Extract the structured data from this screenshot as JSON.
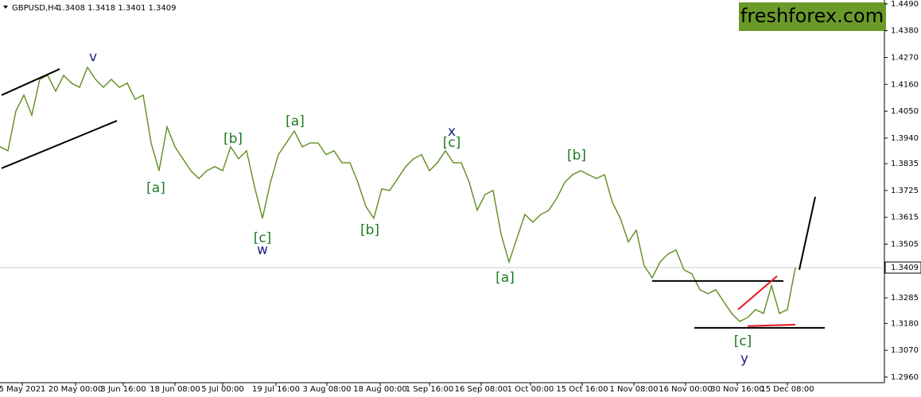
{
  "chart_data": {
    "type": "line",
    "symbol": "GBPUSD,H4",
    "ohlc": "1.3408 1.3418 1.3401 1.3409",
    "logo": "freshforex.com",
    "xlim": [
      0,
      111
    ],
    "ylim": [
      1.2937,
      1.4506
    ],
    "xticks": [
      {
        "value": 2.8,
        "label": "5 May 2021"
      },
      {
        "value": 9.5,
        "label": "20 May 00:00"
      },
      {
        "value": 15.5,
        "label": "3 Jun 16:00"
      },
      {
        "value": 22,
        "label": "18 Jun 08:00"
      },
      {
        "value": 28,
        "label": "5 Jul 00:00"
      },
      {
        "value": 34.7,
        "label": "19 Jul 16:00"
      },
      {
        "value": 41.1,
        "label": "3 Aug 08:00"
      },
      {
        "value": 47.8,
        "label": "18 Aug 00:00"
      },
      {
        "value": 54,
        "label": "1 Sep 16:00"
      },
      {
        "value": 60.5,
        "label": "16 Sep 08:00"
      },
      {
        "value": 66.7,
        "label": "1 Oct 00:00"
      },
      {
        "value": 73.2,
        "label": "15 Oct 16:00"
      },
      {
        "value": 79.7,
        "label": "1 Nov 08:00"
      },
      {
        "value": 86.2,
        "label": "16 Nov 00:00"
      },
      {
        "value": 92.7,
        "label": "30 Nov 16:00"
      },
      {
        "value": 99,
        "label": "15 Dec 08:00"
      }
    ],
    "yticks": [
      {
        "value": 1.449,
        "label": "1.4490"
      },
      {
        "value": 1.438,
        "label": "1.4380"
      },
      {
        "value": 1.427,
        "label": "1.4270"
      },
      {
        "value": 1.416,
        "label": "1.4160"
      },
      {
        "value": 1.405,
        "label": "1.4050"
      },
      {
        "value": 1.394,
        "label": "1.3940"
      },
      {
        "value": 1.3835,
        "label": "1.3835"
      },
      {
        "value": 1.3725,
        "label": "1.3725"
      },
      {
        "value": 1.3615,
        "label": "1.3615"
      },
      {
        "value": 1.3505,
        "label": "1.3505"
      },
      {
        "value": 1.3285,
        "label": "1.3285"
      },
      {
        "value": 1.318,
        "label": "1.3180"
      },
      {
        "value": 1.307,
        "label": "1.3070"
      },
      {
        "value": 1.296,
        "label": "1.2960"
      }
    ],
    "current_price": {
      "value": 1.3409,
      "label": "1.3409"
    },
    "series": [
      {
        "name": "GBPUSD",
        "color": "#5e8c1e",
        "x": [
          0,
          1,
          2,
          3,
          4,
          5,
          6,
          7,
          8,
          9,
          10,
          11,
          12,
          13,
          14,
          15,
          16,
          17,
          18,
          19,
          20,
          21,
          22,
          23,
          24,
          25,
          26,
          27,
          28,
          29,
          30,
          31,
          32,
          33,
          34,
          35,
          36,
          37,
          38,
          39,
          40,
          41,
          42,
          43,
          44,
          45,
          46,
          47,
          48,
          49,
          50,
          51,
          52,
          53,
          54,
          55,
          56,
          57,
          58,
          59,
          60,
          61,
          62,
          63,
          64,
          65,
          66,
          67,
          68,
          69,
          70,
          71,
          72,
          73,
          74,
          75,
          76,
          77,
          78,
          79,
          80,
          81,
          82,
          83,
          84,
          85,
          86,
          87,
          88,
          89,
          90,
          91,
          92,
          93,
          94,
          95,
          96,
          97,
          98,
          99,
          100
        ],
        "values": [
          1.3904,
          1.3888,
          1.4051,
          1.4116,
          1.4034,
          1.4181,
          1.4197,
          1.4132,
          1.4197,
          1.4165,
          1.4148,
          1.423,
          1.4181,
          1.4148,
          1.4181,
          1.4148,
          1.4165,
          1.4099,
          1.4116,
          1.392,
          1.3806,
          1.3986,
          1.3904,
          1.3855,
          1.3806,
          1.3774,
          1.3806,
          1.3823,
          1.3806,
          1.3904,
          1.3855,
          1.3888,
          1.3741,
          1.3611,
          1.3758,
          1.3872,
          1.392,
          1.3969,
          1.3904,
          1.392,
          1.392,
          1.3872,
          1.3888,
          1.3839,
          1.3839,
          1.3758,
          1.366,
          1.3611,
          1.3732,
          1.3725,
          1.3774,
          1.3823,
          1.3855,
          1.3872,
          1.3806,
          1.3839,
          1.3888,
          1.3839,
          1.3839,
          1.3758,
          1.3644,
          1.3709,
          1.3725,
          1.3546,
          1.3432,
          1.353,
          1.3627,
          1.3595,
          1.3627,
          1.3644,
          1.3693,
          1.3758,
          1.379,
          1.3806,
          1.379,
          1.3774,
          1.379,
          1.3676,
          1.3611,
          1.3514,
          1.3562,
          1.3416,
          1.3367,
          1.3432,
          1.3465,
          1.3481,
          1.34,
          1.3383,
          1.3318,
          1.3302,
          1.3318,
          1.3269,
          1.3221,
          1.3188,
          1.3204,
          1.3237,
          1.3221,
          1.3335,
          1.3221,
          1.3237,
          1.3409
        ]
      }
    ],
    "annotations": [
      {
        "text": "v",
        "x": 11.7,
        "y": 1.4272,
        "color": "#1a237e"
      },
      {
        "text": "[a]",
        "x": 19.6,
        "y": 1.3735,
        "color": "#1e7a1e"
      },
      {
        "text": "[b]",
        "x": 29.3,
        "y": 1.3937,
        "color": "#1e7a1e"
      },
      {
        "text": "[c]",
        "x": 33,
        "y": 1.353,
        "color": "#1e7a1e"
      },
      {
        "text": "w",
        "x": 33,
        "y": 1.3481,
        "color": "#1a237e"
      },
      {
        "text": "[a]",
        "x": 37.1,
        "y": 1.4008,
        "color": "#1e7a1e"
      },
      {
        "text": "[b]",
        "x": 46.5,
        "y": 1.3562,
        "color": "#1e7a1e"
      },
      {
        "text": "x",
        "x": 56.8,
        "y": 1.3966,
        "color": "#1a237e"
      },
      {
        "text": "[c]",
        "x": 56.8,
        "y": 1.392,
        "color": "#1e7a1e"
      },
      {
        "text": "[a]",
        "x": 63.5,
        "y": 1.3367,
        "color": "#1e7a1e"
      },
      {
        "text": "[b]",
        "x": 72.5,
        "y": 1.3868,
        "color": "#1e7a1e"
      },
      {
        "text": "[c]",
        "x": 93.4,
        "y": 1.3107,
        "color": "#1e7a1e"
      },
      {
        "text": "y",
        "x": 93.6,
        "y": 1.3035,
        "color": "#1a237e"
      }
    ],
    "lines": [
      {
        "x1": 0.2,
        "y1": 1.4116,
        "x2": 7.5,
        "y2": 1.4223,
        "color": "#000000"
      },
      {
        "x1": 0.2,
        "y1": 1.3816,
        "x2": 14.7,
        "y2": 1.4011,
        "color": "#000000"
      },
      {
        "x1": 82,
        "y1": 1.3354,
        "x2": 98.5,
        "y2": 1.3354,
        "color": "#000000"
      },
      {
        "x1": 87.3,
        "y1": 1.3162,
        "x2": 103.7,
        "y2": 1.3162,
        "color": "#000000"
      },
      {
        "x1": 100.5,
        "y1": 1.34,
        "x2": 102.5,
        "y2": 1.3699,
        "color": "#000000"
      },
      {
        "x1": 92.8,
        "y1": 1.3237,
        "x2": 97.7,
        "y2": 1.3374,
        "color": "#e8141e"
      },
      {
        "x1": 94,
        "y1": 1.3169,
        "x2": 100,
        "y2": 1.3175,
        "color": "#e8141e"
      }
    ]
  }
}
